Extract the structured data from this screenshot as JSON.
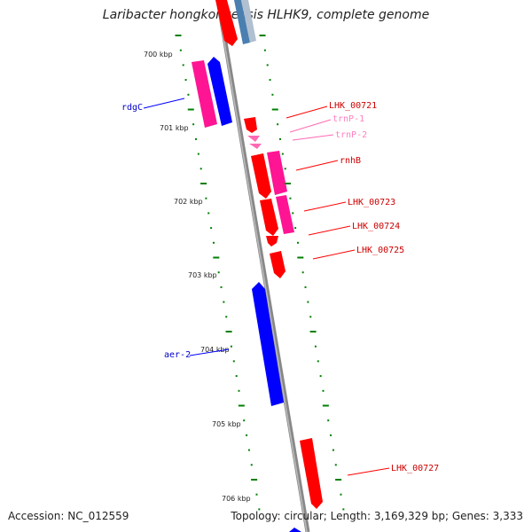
{
  "title": "Laribacter hongkongensis HLHK9, complete genome",
  "footer": {
    "accession": "Accession: NC_012559",
    "meta": "Topology: circular; Length: 3,169,329 bp; Genes: 3,333"
  },
  "colors": {
    "forward": "#ff0000",
    "reverse": "#0000ff",
    "pink": "#ff1493",
    "trna": "#ff69b4",
    "backbone": "#888888",
    "tick": "#008000"
  },
  "kbp_labels": [
    "700 kbp",
    "701 kbp",
    "702 kbp",
    "703 kbp",
    "704 kbp",
    "705 kbp",
    "706 kbp"
  ],
  "gene_labels": {
    "rdgC": "rdgC",
    "aer2": "aer-2",
    "lhk721": "LHK_00721",
    "trnP1": "trnP-1",
    "trnP2": "trnP-2",
    "rnhB": "rnhB",
    "lhk723": "LHK_00723",
    "lhk724": "LHK_00724",
    "lhk725": "LHK_00725",
    "lhk727": "LHK_00727"
  }
}
